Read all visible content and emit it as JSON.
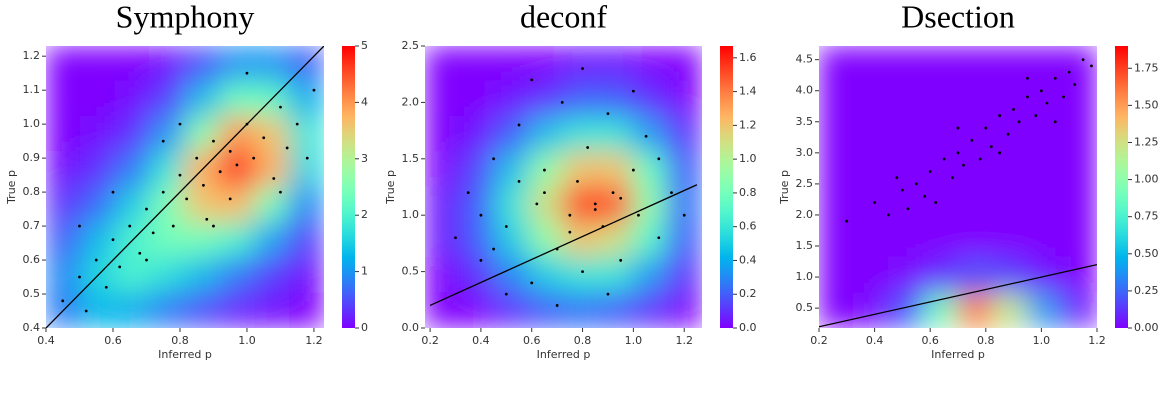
{
  "chart_data": [
    {
      "type": "scatter",
      "title": "Symphony",
      "x_label": "Inferred p",
      "y_label": "True p",
      "color": "#000000",
      "xlim": [
        0.4,
        1.23
      ],
      "ylim": [
        0.4,
        1.23
      ],
      "xticks": [
        0.4,
        0.6,
        0.8,
        {
          "value": 1,
          "label": "1.0"
        },
        1.2
      ],
      "yticks": [
        0.4,
        0.5,
        0.6,
        0.7,
        0.8,
        0.9,
        {
          "value": 1,
          "label": "1.0"
        },
        1.1,
        1.2
      ],
      "x": [
        0.45,
        0.5,
        0.52,
        0.55,
        0.58,
        0.6,
        0.62,
        0.65,
        0.68,
        0.7,
        0.72,
        0.75,
        0.78,
        0.8,
        0.82,
        0.85,
        0.87,
        0.9,
        0.92,
        0.95,
        0.97,
        1.0,
        1.02,
        1.05,
        1.08,
        1.1,
        1.12,
        1.15,
        1.18,
        1.2,
        0.6,
        0.7,
        0.9,
        1.0,
        0.5,
        0.8,
        0.95,
        1.1,
        0.75,
        0.88
      ],
      "y": [
        0.48,
        0.55,
        0.45,
        0.6,
        0.52,
        0.66,
        0.58,
        0.7,
        0.62,
        0.75,
        0.68,
        0.8,
        0.7,
        0.85,
        0.78,
        0.9,
        0.82,
        0.95,
        0.86,
        0.92,
        0.88,
        1.0,
        0.9,
        0.96,
        0.84,
        1.05,
        0.93,
        1.0,
        0.9,
        1.1,
        0.8,
        0.6,
        0.7,
        1.15,
        0.7,
        1.0,
        0.78,
        0.8,
        0.95,
        0.72
      ],
      "line": {
        "x": [
          0.4,
          1.23
        ],
        "y": [
          0.4,
          1.23
        ],
        "color": "#000000"
      },
      "heatmap": {
        "colormap": "rainbow",
        "clim": [
          0,
          5
        ],
        "cticks": [
          0,
          1,
          2,
          3,
          4,
          5
        ],
        "values": [
          [
            0,
            0,
            0,
            0.1,
            0.5,
            1,
            1,
            0.6
          ],
          [
            0,
            0,
            0.1,
            0.4,
            1.3,
            2.3,
            2.2,
            1.2
          ],
          [
            0,
            0.1,
            0.3,
            1,
            2.6,
            4,
            3.6,
            1.8
          ],
          [
            0.1,
            0.3,
            0.8,
            1.8,
            3.8,
            4.9,
            3.8,
            1.6
          ],
          [
            0.3,
            0.7,
            1.5,
            2.5,
            3.6,
            3.7,
            2.4,
            0.9
          ],
          [
            0.6,
            1.3,
            2,
            2.4,
            2.4,
            2,
            1.1,
            0.4
          ],
          [
            0.9,
            1.6,
            2,
            1.7,
            1.3,
            0.8,
            0.4,
            0.1
          ],
          [
            0.8,
            1.3,
            1.2,
            0.8,
            0.5,
            0.2,
            0.1,
            0
          ]
        ]
      }
    },
    {
      "type": "scatter",
      "title": "deconf",
      "x_label": "Inferred p",
      "y_label": "True p",
      "color": "#000000",
      "xlim": [
        0.18,
        1.27
      ],
      "ylim": [
        0,
        2.5
      ],
      "xticks": [
        0.2,
        0.4,
        0.6,
        0.8,
        {
          "value": 1,
          "label": "1.0"
        },
        1.2
      ],
      "yticks": [
        {
          "value": 0,
          "label": "0.0"
        },
        0.5,
        {
          "value": 1,
          "label": "1.0"
        },
        1.5,
        {
          "value": 2,
          "label": "2.0"
        },
        2.5
      ],
      "x": [
        0.3,
        0.35,
        0.4,
        0.45,
        0.5,
        0.55,
        0.6,
        0.62,
        0.65,
        0.7,
        0.72,
        0.75,
        0.78,
        0.8,
        0.82,
        0.85,
        0.88,
        0.9,
        0.92,
        0.95,
        1.0,
        1.02,
        1.05,
        1.1,
        1.15,
        1.2,
        0.5,
        0.6,
        0.7,
        0.8,
        0.9,
        1.0,
        0.4,
        0.65,
        0.85,
        0.75,
        0.95,
        0.55,
        1.1,
        0.45
      ],
      "y": [
        0.8,
        1.2,
        0.6,
        1.5,
        0.9,
        1.8,
        0.4,
        1.1,
        1.4,
        0.7,
        2.0,
        1.0,
        1.3,
        0.5,
        1.6,
        1.1,
        0.9,
        1.9,
        1.2,
        0.6,
        1.4,
        1.0,
        1.7,
        0.8,
        1.2,
        1.0,
        0.3,
        2.2,
        0.2,
        2.3,
        0.3,
        2.1,
        1.0,
        1.2,
        1.05,
        0.85,
        1.15,
        1.3,
        1.5,
        0.7
      ],
      "line": {
        "x": [
          0.2,
          1.25
        ],
        "y": [
          0.2,
          1.27
        ],
        "color": "#000000"
      },
      "heatmap": {
        "colormap": "rainbow",
        "clim": [
          0,
          1.67
        ],
        "cticks": [
          {
            "value": 0,
            "label": "0.0"
          },
          0.2,
          0.4,
          0.6,
          0.8,
          {
            "value": 1,
            "label": "1.0"
          },
          1.2,
          1.4,
          1.6
        ],
        "values": [
          [
            0,
            0,
            0,
            0,
            0.05,
            0.05,
            0,
            0
          ],
          [
            0,
            0,
            0.05,
            0.1,
            0.2,
            0.2,
            0.1,
            0
          ],
          [
            0,
            0.05,
            0.2,
            0.45,
            0.6,
            0.6,
            0.35,
            0.1
          ],
          [
            0,
            0.15,
            0.45,
            0.9,
            1.2,
            1.2,
            0.75,
            0.2
          ],
          [
            0.05,
            0.2,
            0.6,
            1.1,
            1.55,
            1.5,
            0.9,
            0.25
          ],
          [
            0.05,
            0.2,
            0.5,
            0.9,
            1.2,
            1.1,
            0.7,
            0.2
          ],
          [
            0,
            0.1,
            0.3,
            0.5,
            0.6,
            0.6,
            0.35,
            0.1
          ],
          [
            0,
            0,
            0.1,
            0.2,
            0.25,
            0.2,
            0.1,
            0
          ]
        ]
      }
    },
    {
      "type": "scatter",
      "title": "Dsection",
      "x_label": "Inferred p",
      "y_label": "True p",
      "color": "#000000",
      "xlim": [
        0.2,
        1.2
      ],
      "ylim": [
        0.18,
        4.72
      ],
      "xticks": [
        0.2,
        0.4,
        0.6,
        0.8,
        {
          "value": 1,
          "label": "1.0"
        },
        1.2
      ],
      "yticks": [
        0.5,
        {
          "value": 1,
          "label": "1.0"
        },
        1.5,
        {
          "value": 2,
          "label": "2.0"
        },
        2.5,
        {
          "value": 3,
          "label": "3.0"
        },
        3.5,
        {
          "value": 4,
          "label": "4.0"
        },
        4.5
      ],
      "x": [
        0.4,
        0.45,
        0.5,
        0.52,
        0.55,
        0.58,
        0.6,
        0.62,
        0.65,
        0.68,
        0.7,
        0.72,
        0.75,
        0.78,
        0.8,
        0.82,
        0.85,
        0.88,
        0.9,
        0.92,
        0.95,
        0.98,
        1.0,
        1.02,
        1.05,
        1.08,
        1.1,
        1.12,
        1.15,
        1.18,
        0.3,
        0.48,
        0.7,
        0.85,
        0.95,
        1.05
      ],
      "y": [
        2.2,
        2.0,
        2.4,
        2.1,
        2.5,
        2.3,
        2.7,
        2.2,
        2.9,
        2.6,
        3.0,
        2.8,
        3.2,
        2.9,
        3.4,
        3.1,
        3.6,
        3.3,
        3.7,
        3.5,
        3.9,
        3.6,
        4.0,
        3.8,
        4.2,
        3.9,
        4.3,
        4.1,
        4.5,
        4.4,
        1.9,
        2.6,
        3.4,
        3.0,
        4.2,
        3.5
      ],
      "line": {
        "x": [
          0.2,
          1.2
        ],
        "y": [
          0.2,
          1.2
        ],
        "color": "#000000"
      },
      "heatmap": {
        "colormap": "rainbow",
        "clim": [
          0,
          1.9
        ],
        "cticks": [
          {
            "value": 0,
            "label": "0.00"
          },
          0.25,
          {
            "value": 0.5,
            "label": "0.50"
          },
          0.75,
          {
            "value": 1,
            "label": "1.00"
          },
          1.25,
          {
            "value": 1.5,
            "label": "1.50"
          },
          1.75
        ],
        "values": [
          [
            0,
            0,
            0,
            0,
            0,
            0,
            0,
            0
          ],
          [
            0,
            0,
            0,
            0,
            0,
            0,
            0,
            0
          ],
          [
            0,
            0,
            0,
            0,
            0,
            0,
            0,
            0
          ],
          [
            0,
            0,
            0,
            0,
            0,
            0,
            0,
            0
          ],
          [
            0,
            0,
            0,
            0,
            0,
            0,
            0,
            0
          ],
          [
            0,
            0,
            0,
            0,
            0,
            0,
            0,
            0
          ],
          [
            0,
            0,
            0.02,
            0.1,
            0.2,
            0.15,
            0.05,
            0
          ],
          [
            0,
            0.02,
            0.2,
            0.9,
            1.6,
            1.2,
            0.4,
            0.05
          ]
        ]
      }
    }
  ]
}
